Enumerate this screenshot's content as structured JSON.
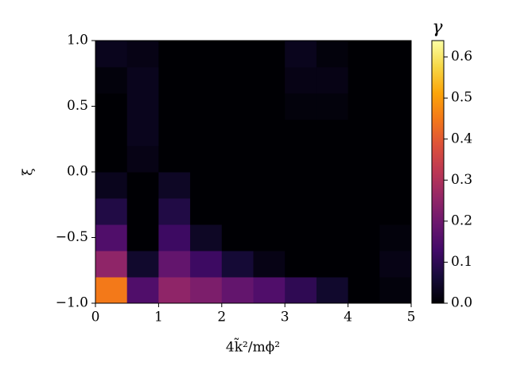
{
  "chart_data": {
    "type": "heatmap",
    "colormap": "inferno",
    "x_label": "4k̃²/mϕ²",
    "y_label": "ξ",
    "colorbar_label": "γ",
    "x_edges": [
      0,
      0.5,
      1,
      1.5,
      2,
      2.5,
      3,
      3.5,
      4,
      4.5,
      5
    ],
    "y_edges": [
      -1,
      -0.8,
      -0.6,
      -0.4,
      -0.2,
      0,
      0.2,
      0.4,
      0.6,
      0.8,
      1
    ],
    "z": [
      [
        0.45,
        0.15,
        0.25,
        0.22,
        0.18,
        0.15,
        0.1,
        0.05,
        0,
        0.01
      ],
      [
        0.25,
        0.05,
        0.18,
        0.12,
        0.06,
        0.02,
        0,
        0,
        0,
        0.02
      ],
      [
        0.15,
        0,
        0.12,
        0.04,
        0,
        0,
        0,
        0,
        0,
        0.01
      ],
      [
        0.08,
        0,
        0.08,
        0,
        0,
        0,
        0,
        0,
        0,
        0
      ],
      [
        0.03,
        0,
        0.04,
        0,
        0,
        0,
        0,
        0,
        0,
        0
      ],
      [
        0,
        0.02,
        0,
        0,
        0,
        0,
        0,
        0,
        0,
        0
      ],
      [
        0,
        0.03,
        0,
        0,
        0,
        0,
        0,
        0,
        0,
        0
      ],
      [
        0,
        0.03,
        0,
        0,
        0,
        0,
        0.01,
        0.01,
        0,
        0
      ],
      [
        0.01,
        0.03,
        0,
        0,
        0,
        0,
        0.02,
        0.02,
        0,
        0
      ],
      [
        0.03,
        0.02,
        0,
        0,
        0,
        0,
        0.03,
        0.01,
        0,
        0
      ]
    ],
    "xlim": [
      0,
      5
    ],
    "ylim": [
      -1,
      1
    ],
    "clim": [
      0,
      0.64
    ],
    "xticks": [
      0,
      1,
      2,
      3,
      4,
      5
    ],
    "yticks": [
      {
        "value": -1,
        "label": "−1.0"
      },
      {
        "value": -0.5,
        "label": "−0.5"
      },
      {
        "value": 0,
        "label": "0.0"
      },
      0.5,
      {
        "value": 1,
        "label": "1.0"
      }
    ],
    "cticks": [
      {
        "value": 0,
        "label": "0.0"
      },
      0.1,
      0.2,
      0.3,
      0.4,
      0.5,
      0.6
    ]
  }
}
